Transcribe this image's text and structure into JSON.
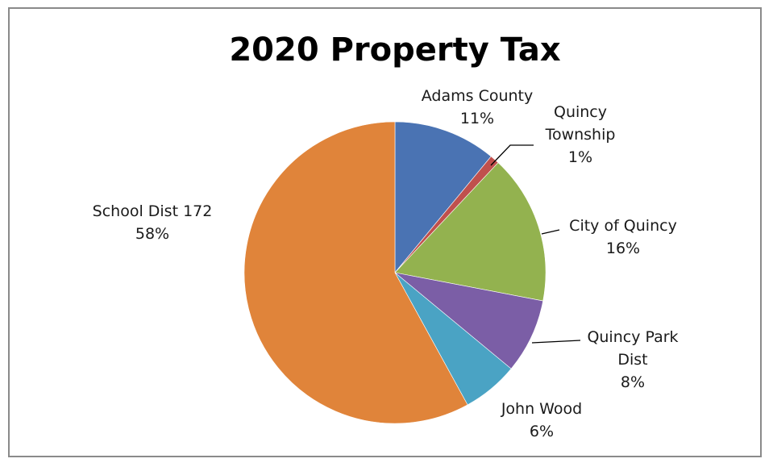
{
  "chart_data": {
    "type": "pie",
    "title": "2020 Property Tax",
    "start_angle_deg": 0,
    "direction": "clockwise",
    "slices": [
      {
        "name": "Adams County",
        "value": 11,
        "label_lines": [
          "Adams County",
          "11%"
        ],
        "color": "#4a73b3"
      },
      {
        "name": "Quincy Township",
        "value": 1,
        "label_lines": [
          "Quincy",
          "Township",
          "1%"
        ],
        "color": "#c0504d"
      },
      {
        "name": "City of Quincy",
        "value": 16,
        "label_lines": [
          "City of Quincy",
          "16%"
        ],
        "color": "#93b24f"
      },
      {
        "name": "Quincy Park Dist",
        "value": 8,
        "label_lines": [
          "Quincy Park",
          "Dist",
          "8%"
        ],
        "color": "#7b5ea6"
      },
      {
        "name": "John Wood",
        "value": 6,
        "label_lines": [
          "John Wood",
          "6%"
        ],
        "color": "#4aa3c4"
      },
      {
        "name": "School Dist 172",
        "value": 58,
        "label_lines": [
          "School Dist 172",
          "58%"
        ],
        "color": "#e0843a"
      }
    ]
  }
}
